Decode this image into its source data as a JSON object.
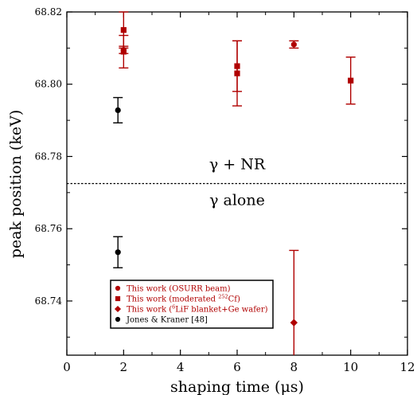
{
  "chart_data": {
    "type": "scatter",
    "title": "",
    "xlabel": "shaping time (μs)",
    "ylabel": "peak position (keV)",
    "xlim": [
      0,
      12
    ],
    "ylim": [
      68.725,
      68.82
    ],
    "x_ticks": [
      "0",
      "2",
      "4",
      "6",
      "8",
      "10",
      "12"
    ],
    "y_ticks": [
      "68.74",
      "68.76",
      "68.78",
      "68.80",
      "68.82"
    ],
    "grid": false,
    "legend_position": "bottom-left",
    "reference_line": {
      "y": 68.7725,
      "style": "dotted"
    },
    "annotations": [
      {
        "text": "γ + NR",
        "x": 6.0,
        "y": 68.7765
      },
      {
        "text": "γ alone",
        "x": 6.0,
        "y": 68.7665
      }
    ],
    "series": [
      {
        "name": "This work (OSURR beam)",
        "marker": "circle",
        "color": "#b00000",
        "points": [
          {
            "x": 2.0,
            "y": 68.8095,
            "err": 0.001
          },
          {
            "x": 8.0,
            "y": 68.811,
            "err": 0.001
          }
        ]
      },
      {
        "name": "This work (moderated 252Cf)",
        "name_prefix": "This work (moderated ",
        "name_sup": "252",
        "name_suffix": "Cf)",
        "marker": "square",
        "color": "#b00000",
        "points": [
          {
            "x": 2.0,
            "y": 68.815,
            "err": 0.005
          },
          {
            "x": 2.0,
            "y": 68.809,
            "err": 0.0045
          },
          {
            "x": 6.0,
            "y": 68.805,
            "err": 0.007
          },
          {
            "x": 6.0,
            "y": 68.803,
            "err": 0.009
          },
          {
            "x": 10.0,
            "y": 68.801,
            "err": 0.0065
          }
        ]
      },
      {
        "name": "This work (6LiF blanket+Ge wafer)",
        "name_prefix": "This work (",
        "name_sup": "6",
        "name_suffix": "LiF blanket+Ge wafer)",
        "marker": "diamond",
        "color": "#b00000",
        "points": [
          {
            "x": 8.0,
            "y": 68.734,
            "err": 0.02
          }
        ]
      },
      {
        "name": "Jones & Kraner [48]",
        "marker": "circle",
        "color": "#000000",
        "points": [
          {
            "x": 1.8,
            "y": 68.7928,
            "err": 0.0035
          },
          {
            "x": 1.8,
            "y": 68.7535,
            "err": 0.0043
          }
        ]
      }
    ]
  }
}
